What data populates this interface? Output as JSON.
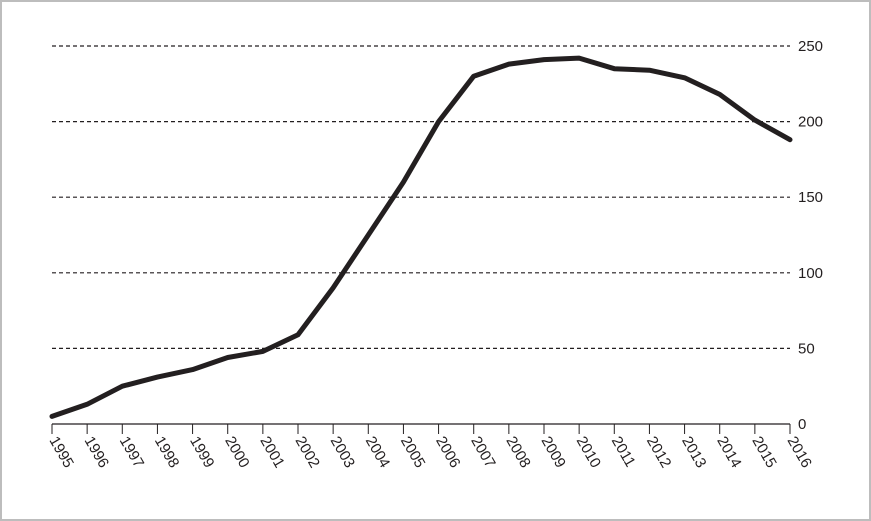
{
  "chart_data": {
    "type": "line",
    "title": "",
    "xlabel": "",
    "ylabel": "",
    "x": [
      "1995",
      "1996",
      "1997",
      "1998",
      "1999",
      "2000",
      "2001",
      "2002",
      "2003",
      "2004",
      "2005",
      "2006",
      "2007",
      "2008",
      "2009",
      "2010",
      "2011",
      "2012",
      "2013",
      "2014",
      "2015",
      "2016"
    ],
    "series": [
      {
        "values": [
          5,
          13,
          25,
          31,
          36,
          44,
          48,
          59,
          90,
          125,
          160,
          200,
          230,
          238,
          241,
          242,
          235,
          234,
          229,
          218,
          201,
          188
        ],
        "color": "#231f20"
      }
    ],
    "ylim": [
      0,
      250
    ],
    "yticks": [
      0,
      50,
      100,
      150,
      200,
      250
    ],
    "y_axis_position": "right",
    "grid": true,
    "grid_style": "dashed horizontal",
    "legend": "none"
  }
}
